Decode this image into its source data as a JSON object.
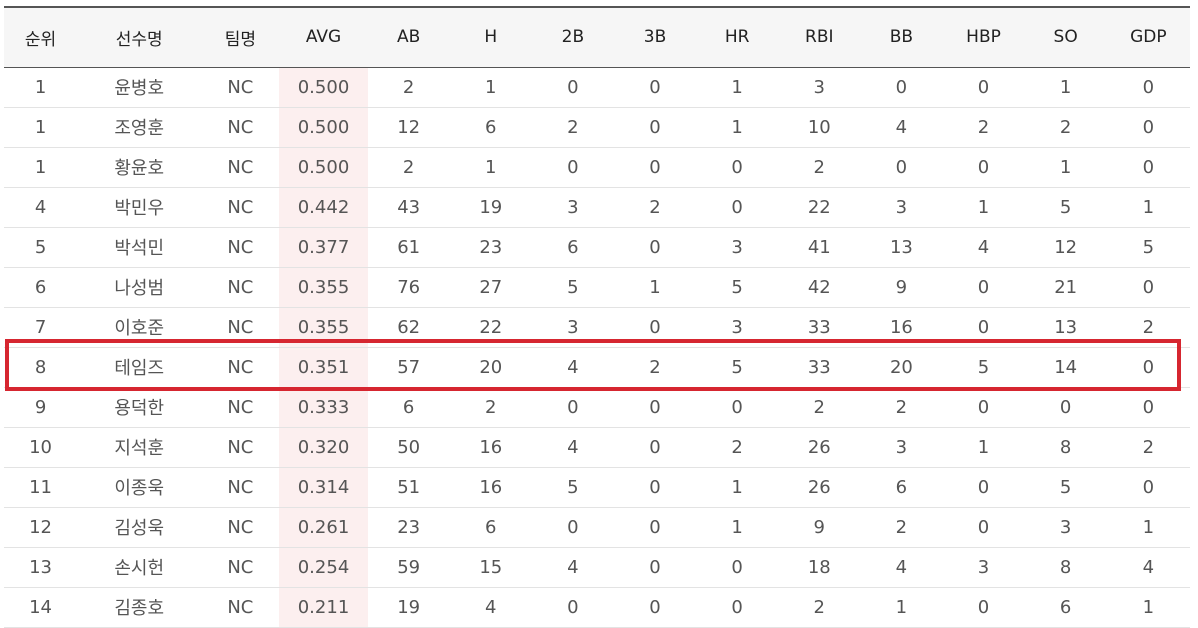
{
  "table": {
    "headers": [
      "순위",
      "선수명",
      "팀명",
      "AVG",
      "AB",
      "H",
      "2B",
      "3B",
      "HR",
      "RBI",
      "BB",
      "HBP",
      "SO",
      "GDP"
    ],
    "rows": [
      [
        "1",
        "윤병호",
        "NC",
        "0.500",
        "2",
        "1",
        "0",
        "0",
        "1",
        "3",
        "0",
        "0",
        "1",
        "0"
      ],
      [
        "1",
        "조영훈",
        "NC",
        "0.500",
        "12",
        "6",
        "2",
        "0",
        "1",
        "10",
        "4",
        "2",
        "2",
        "0"
      ],
      [
        "1",
        "황윤호",
        "NC",
        "0.500",
        "2",
        "1",
        "0",
        "0",
        "0",
        "2",
        "0",
        "0",
        "1",
        "0"
      ],
      [
        "4",
        "박민우",
        "NC",
        "0.442",
        "43",
        "19",
        "3",
        "2",
        "0",
        "22",
        "3",
        "1",
        "5",
        "1"
      ],
      [
        "5",
        "박석민",
        "NC",
        "0.377",
        "61",
        "23",
        "6",
        "0",
        "3",
        "41",
        "13",
        "4",
        "12",
        "5"
      ],
      [
        "6",
        "나성범",
        "NC",
        "0.355",
        "76",
        "27",
        "5",
        "1",
        "5",
        "42",
        "9",
        "0",
        "21",
        "0"
      ],
      [
        "7",
        "이호준",
        "NC",
        "0.355",
        "62",
        "22",
        "3",
        "0",
        "3",
        "33",
        "16",
        "0",
        "13",
        "2"
      ],
      [
        "8",
        "테임즈",
        "NC",
        "0.351",
        "57",
        "20",
        "4",
        "2",
        "5",
        "33",
        "20",
        "5",
        "14",
        "0"
      ],
      [
        "9",
        "용덕한",
        "NC",
        "0.333",
        "6",
        "2",
        "0",
        "0",
        "0",
        "2",
        "2",
        "0",
        "0",
        "0"
      ],
      [
        "10",
        "지석훈",
        "NC",
        "0.320",
        "50",
        "16",
        "4",
        "0",
        "2",
        "26",
        "3",
        "1",
        "8",
        "2"
      ],
      [
        "11",
        "이종욱",
        "NC",
        "0.314",
        "51",
        "16",
        "5",
        "0",
        "1",
        "26",
        "6",
        "0",
        "5",
        "0"
      ],
      [
        "12",
        "김성욱",
        "NC",
        "0.261",
        "23",
        "6",
        "0",
        "0",
        "1",
        "9",
        "2",
        "0",
        "3",
        "1"
      ],
      [
        "13",
        "손시헌",
        "NC",
        "0.254",
        "59",
        "15",
        "4",
        "0",
        "0",
        "18",
        "4",
        "3",
        "8",
        "4"
      ],
      [
        "14",
        "김종호",
        "NC",
        "0.211",
        "19",
        "4",
        "0",
        "0",
        "0",
        "2",
        "1",
        "0",
        "6",
        "1"
      ]
    ],
    "highlighted_player": "테임즈"
  },
  "colors": {
    "highlight_border": "#d62630",
    "avg_column_bg": "#fcefef",
    "header_bg": "#f6f6f6"
  }
}
